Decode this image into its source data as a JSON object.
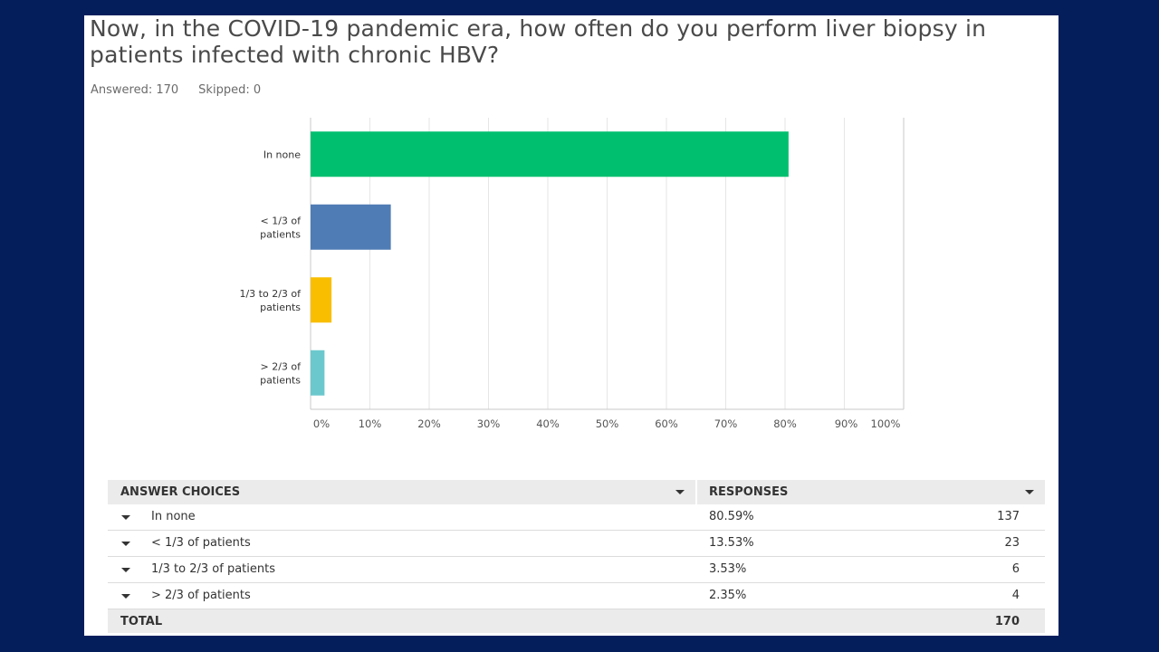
{
  "question": "Now, in the COVID-19 pandemic era, how often do you perform liver biopsy in patients infected with chronic HBV?",
  "stats": {
    "answered": "Answered: 170",
    "skipped": "Skipped: 0"
  },
  "chart_data": {
    "type": "bar",
    "orientation": "horizontal",
    "categories": [
      [
        "In none"
      ],
      [
        "< 1/3 of",
        "patients"
      ],
      [
        "1/3 to 2/3 of",
        "patients"
      ],
      [
        "> 2/3 of",
        "patients"
      ]
    ],
    "values": [
      80.59,
      13.53,
      3.53,
      2.35
    ],
    "colors": [
      "#00bf6f",
      "#507cb6",
      "#f9be00",
      "#6bc8cd"
    ],
    "xlim": [
      0,
      100
    ],
    "xticks": [
      0,
      10,
      20,
      30,
      40,
      50,
      60,
      70,
      80,
      90,
      100
    ],
    "xtick_labels": [
      "0%",
      "10%",
      "20%",
      "30%",
      "40%",
      "50%",
      "60%",
      "70%",
      "80%",
      "90%",
      "100%"
    ],
    "grid": true,
    "title": "",
    "xlabel": "",
    "ylabel": ""
  },
  "table": {
    "header": {
      "choices": "ANSWER CHOICES",
      "responses": "RESPONSES"
    },
    "rows": [
      {
        "label": "In none",
        "percent": "80.59%",
        "count": "137"
      },
      {
        "label": "< 1/3 of patients",
        "percent": "13.53%",
        "count": "23"
      },
      {
        "label": "1/3 to 2/3 of patients",
        "percent": "3.53%",
        "count": "6"
      },
      {
        "label": "> 2/3 of patients",
        "percent": "2.35%",
        "count": "4"
      }
    ],
    "total": {
      "label": "TOTAL",
      "count": "170"
    }
  }
}
